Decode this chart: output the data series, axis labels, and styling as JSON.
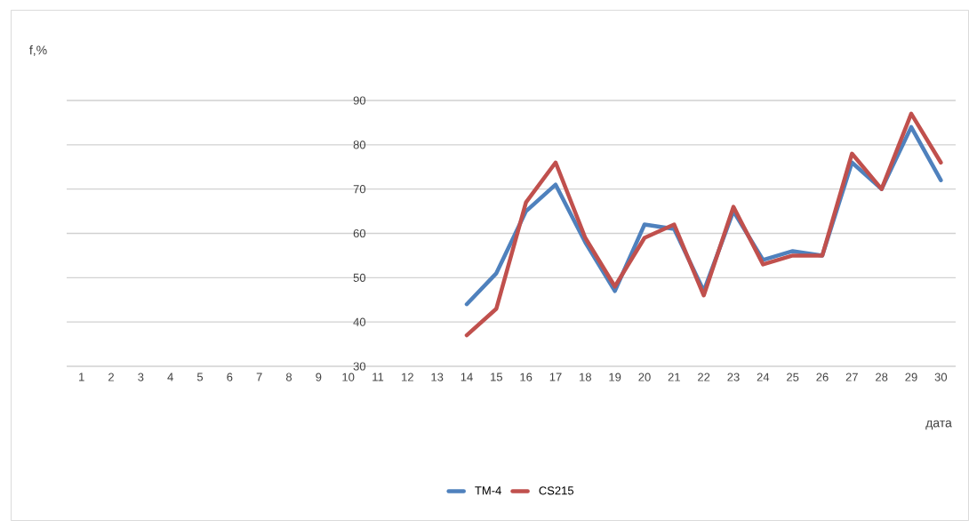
{
  "chart_data": {
    "type": "line",
    "xlabel": "дата",
    "ylabel": "f,%",
    "categories": [
      "1",
      "2",
      "3",
      "4",
      "5",
      "6",
      "7",
      "8",
      "9",
      "10",
      "11",
      "12",
      "13",
      "14",
      "15",
      "16",
      "17",
      "18",
      "19",
      "20",
      "21",
      "22",
      "23",
      "24",
      "25",
      "26",
      "27",
      "28",
      "29",
      "30"
    ],
    "series": [
      {
        "name": "TM-4",
        "color": "#4f81bd",
        "values": [
          null,
          null,
          null,
          null,
          null,
          null,
          null,
          null,
          null,
          null,
          null,
          null,
          null,
          44,
          51,
          65,
          71,
          58,
          47,
          62,
          61,
          47,
          65,
          54,
          56,
          55,
          76,
          70,
          84,
          72
        ]
      },
      {
        "name": "CS215",
        "color": "#c0504d",
        "values": [
          null,
          null,
          null,
          null,
          null,
          null,
          null,
          null,
          null,
          null,
          null,
          null,
          null,
          37,
          43,
          67,
          76,
          59,
          48,
          59,
          62,
          46,
          66,
          53,
          55,
          55,
          78,
          70,
          87,
          76
        ]
      }
    ],
    "ylim": [
      30,
      90
    ],
    "yticks": [
      30,
      40,
      50,
      60,
      70,
      80,
      90
    ],
    "grid": "y",
    "legend": "bottom",
    "marker": "none",
    "line_style": "solid"
  }
}
